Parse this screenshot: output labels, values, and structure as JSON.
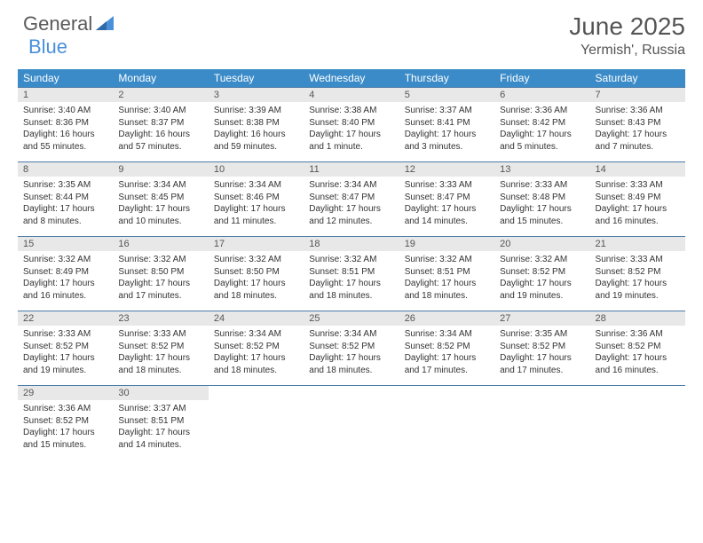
{
  "logo": {
    "text_general": "General",
    "text_blue": "Blue"
  },
  "header": {
    "month_title": "June 2025",
    "location": "Yermish', Russia"
  },
  "colors": {
    "header_bg": "#3b8bc8",
    "header_text": "#ffffff",
    "daynum_bg": "#e8e8e8",
    "row_border": "#4a7ba8",
    "text": "#333333",
    "logo_gray": "#5a5a5a",
    "logo_blue": "#4a90d9"
  },
  "day_names": [
    "Sunday",
    "Monday",
    "Tuesday",
    "Wednesday",
    "Thursday",
    "Friday",
    "Saturday"
  ],
  "weeks": [
    {
      "nums": [
        "1",
        "2",
        "3",
        "4",
        "5",
        "6",
        "7"
      ],
      "cells": [
        {
          "sunrise": "Sunrise: 3:40 AM",
          "sunset": "Sunset: 8:36 PM",
          "day1": "Daylight: 16 hours",
          "day2": "and 55 minutes."
        },
        {
          "sunrise": "Sunrise: 3:40 AM",
          "sunset": "Sunset: 8:37 PM",
          "day1": "Daylight: 16 hours",
          "day2": "and 57 minutes."
        },
        {
          "sunrise": "Sunrise: 3:39 AM",
          "sunset": "Sunset: 8:38 PM",
          "day1": "Daylight: 16 hours",
          "day2": "and 59 minutes."
        },
        {
          "sunrise": "Sunrise: 3:38 AM",
          "sunset": "Sunset: 8:40 PM",
          "day1": "Daylight: 17 hours",
          "day2": "and 1 minute."
        },
        {
          "sunrise": "Sunrise: 3:37 AM",
          "sunset": "Sunset: 8:41 PM",
          "day1": "Daylight: 17 hours",
          "day2": "and 3 minutes."
        },
        {
          "sunrise": "Sunrise: 3:36 AM",
          "sunset": "Sunset: 8:42 PM",
          "day1": "Daylight: 17 hours",
          "day2": "and 5 minutes."
        },
        {
          "sunrise": "Sunrise: 3:36 AM",
          "sunset": "Sunset: 8:43 PM",
          "day1": "Daylight: 17 hours",
          "day2": "and 7 minutes."
        }
      ]
    },
    {
      "nums": [
        "8",
        "9",
        "10",
        "11",
        "12",
        "13",
        "14"
      ],
      "cells": [
        {
          "sunrise": "Sunrise: 3:35 AM",
          "sunset": "Sunset: 8:44 PM",
          "day1": "Daylight: 17 hours",
          "day2": "and 8 minutes."
        },
        {
          "sunrise": "Sunrise: 3:34 AM",
          "sunset": "Sunset: 8:45 PM",
          "day1": "Daylight: 17 hours",
          "day2": "and 10 minutes."
        },
        {
          "sunrise": "Sunrise: 3:34 AM",
          "sunset": "Sunset: 8:46 PM",
          "day1": "Daylight: 17 hours",
          "day2": "and 11 minutes."
        },
        {
          "sunrise": "Sunrise: 3:34 AM",
          "sunset": "Sunset: 8:47 PM",
          "day1": "Daylight: 17 hours",
          "day2": "and 12 minutes."
        },
        {
          "sunrise": "Sunrise: 3:33 AM",
          "sunset": "Sunset: 8:47 PM",
          "day1": "Daylight: 17 hours",
          "day2": "and 14 minutes."
        },
        {
          "sunrise": "Sunrise: 3:33 AM",
          "sunset": "Sunset: 8:48 PM",
          "day1": "Daylight: 17 hours",
          "day2": "and 15 minutes."
        },
        {
          "sunrise": "Sunrise: 3:33 AM",
          "sunset": "Sunset: 8:49 PM",
          "day1": "Daylight: 17 hours",
          "day2": "and 16 minutes."
        }
      ]
    },
    {
      "nums": [
        "15",
        "16",
        "17",
        "18",
        "19",
        "20",
        "21"
      ],
      "cells": [
        {
          "sunrise": "Sunrise: 3:32 AM",
          "sunset": "Sunset: 8:49 PM",
          "day1": "Daylight: 17 hours",
          "day2": "and 16 minutes."
        },
        {
          "sunrise": "Sunrise: 3:32 AM",
          "sunset": "Sunset: 8:50 PM",
          "day1": "Daylight: 17 hours",
          "day2": "and 17 minutes."
        },
        {
          "sunrise": "Sunrise: 3:32 AM",
          "sunset": "Sunset: 8:50 PM",
          "day1": "Daylight: 17 hours",
          "day2": "and 18 minutes."
        },
        {
          "sunrise": "Sunrise: 3:32 AM",
          "sunset": "Sunset: 8:51 PM",
          "day1": "Daylight: 17 hours",
          "day2": "and 18 minutes."
        },
        {
          "sunrise": "Sunrise: 3:32 AM",
          "sunset": "Sunset: 8:51 PM",
          "day1": "Daylight: 17 hours",
          "day2": "and 18 minutes."
        },
        {
          "sunrise": "Sunrise: 3:32 AM",
          "sunset": "Sunset: 8:52 PM",
          "day1": "Daylight: 17 hours",
          "day2": "and 19 minutes."
        },
        {
          "sunrise": "Sunrise: 3:33 AM",
          "sunset": "Sunset: 8:52 PM",
          "day1": "Daylight: 17 hours",
          "day2": "and 19 minutes."
        }
      ]
    },
    {
      "nums": [
        "22",
        "23",
        "24",
        "25",
        "26",
        "27",
        "28"
      ],
      "cells": [
        {
          "sunrise": "Sunrise: 3:33 AM",
          "sunset": "Sunset: 8:52 PM",
          "day1": "Daylight: 17 hours",
          "day2": "and 19 minutes."
        },
        {
          "sunrise": "Sunrise: 3:33 AM",
          "sunset": "Sunset: 8:52 PM",
          "day1": "Daylight: 17 hours",
          "day2": "and 18 minutes."
        },
        {
          "sunrise": "Sunrise: 3:34 AM",
          "sunset": "Sunset: 8:52 PM",
          "day1": "Daylight: 17 hours",
          "day2": "and 18 minutes."
        },
        {
          "sunrise": "Sunrise: 3:34 AM",
          "sunset": "Sunset: 8:52 PM",
          "day1": "Daylight: 17 hours",
          "day2": "and 18 minutes."
        },
        {
          "sunrise": "Sunrise: 3:34 AM",
          "sunset": "Sunset: 8:52 PM",
          "day1": "Daylight: 17 hours",
          "day2": "and 17 minutes."
        },
        {
          "sunrise": "Sunrise: 3:35 AM",
          "sunset": "Sunset: 8:52 PM",
          "day1": "Daylight: 17 hours",
          "day2": "and 17 minutes."
        },
        {
          "sunrise": "Sunrise: 3:36 AM",
          "sunset": "Sunset: 8:52 PM",
          "day1": "Daylight: 17 hours",
          "day2": "and 16 minutes."
        }
      ]
    },
    {
      "nums": [
        "29",
        "30",
        "",
        "",
        "",
        "",
        ""
      ],
      "cells": [
        {
          "sunrise": "Sunrise: 3:36 AM",
          "sunset": "Sunset: 8:52 PM",
          "day1": "Daylight: 17 hours",
          "day2": "and 15 minutes."
        },
        {
          "sunrise": "Sunrise: 3:37 AM",
          "sunset": "Sunset: 8:51 PM",
          "day1": "Daylight: 17 hours",
          "day2": "and 14 minutes."
        },
        null,
        null,
        null,
        null,
        null
      ]
    }
  ]
}
